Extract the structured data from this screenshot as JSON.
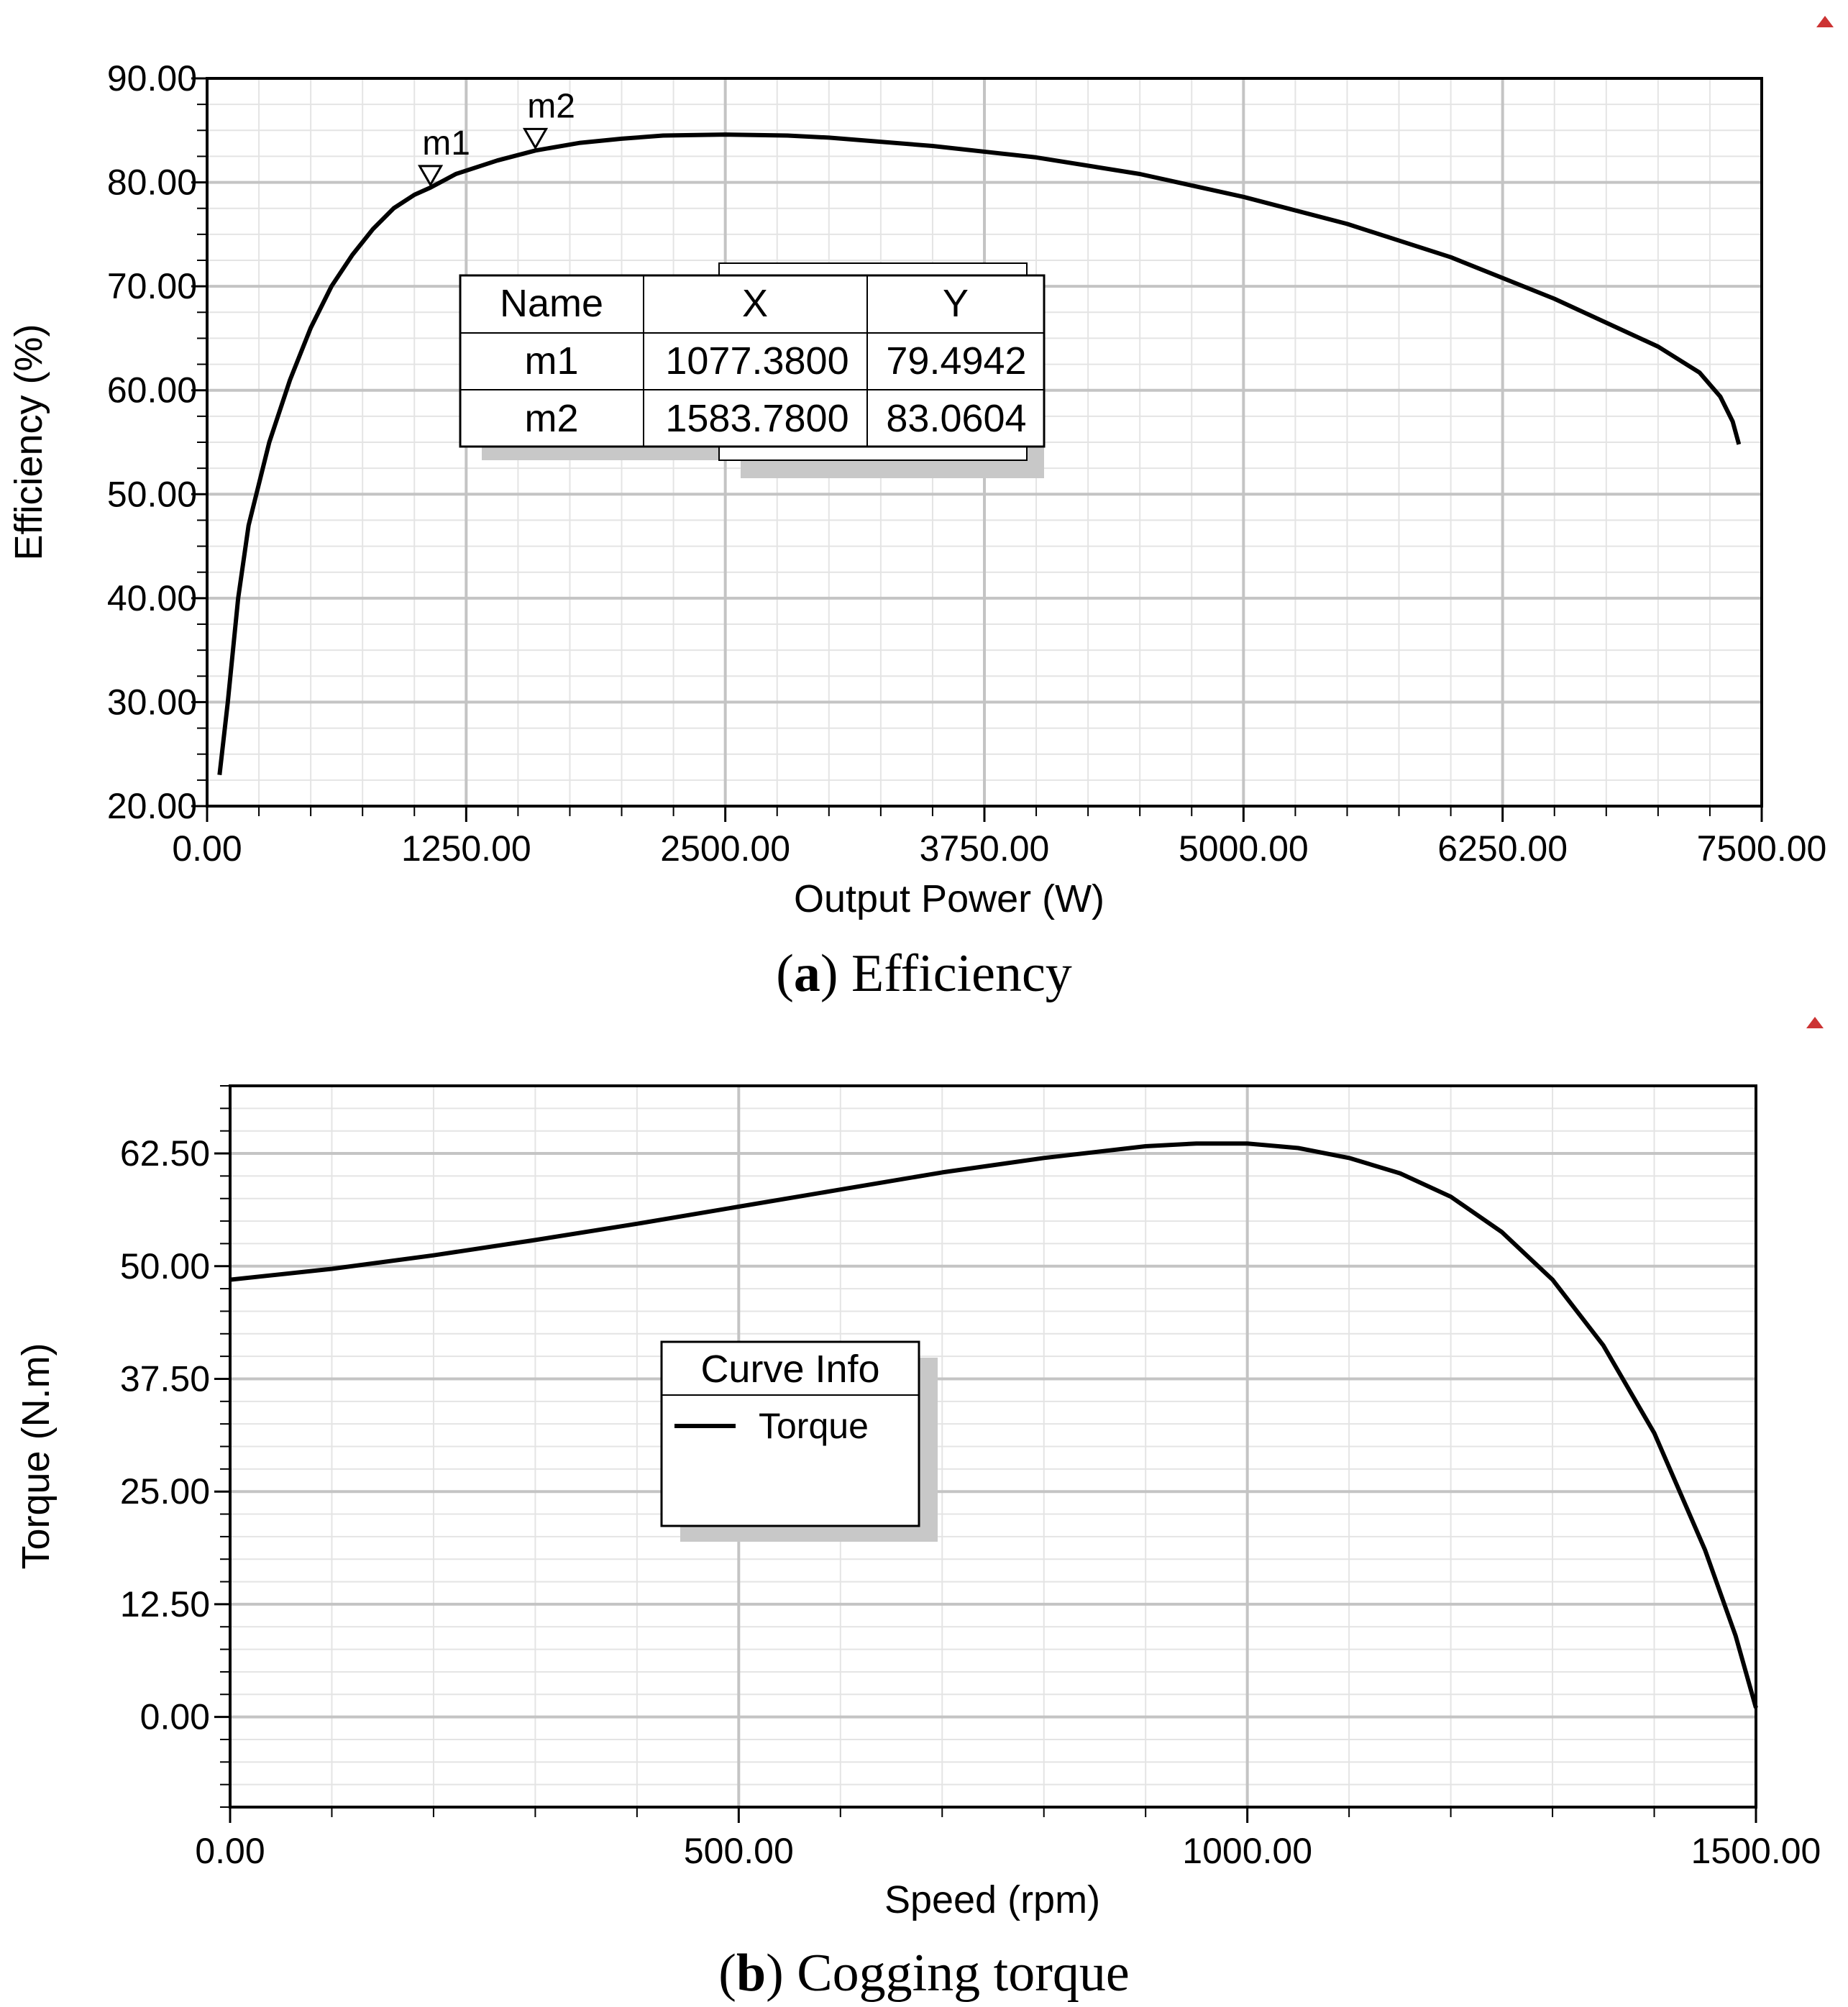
{
  "chart_data": [
    {
      "type": "line",
      "title": "",
      "caption_letter": "a",
      "caption_text": " Efficiency",
      "xlabel": "Output Power (W)",
      "ylabel": "Efficiency (%)",
      "xlim": [
        0,
        7500
      ],
      "ylim": [
        20,
        90
      ],
      "x_ticks": [
        0,
        1250,
        2500,
        3750,
        5000,
        6250,
        7500
      ],
      "x_tick_labels": [
        "0.00",
        "1250.00",
        "2500.00",
        "3750.00",
        "5000.00",
        "6250.00",
        "7500.00"
      ],
      "y_ticks": [
        20,
        30,
        40,
        50,
        60,
        70,
        80,
        90
      ],
      "y_tick_labels": [
        "20.00",
        "30.00",
        "40.00",
        "50.00",
        "60.00",
        "70.00",
        "80.00",
        "90.00"
      ],
      "grid": true,
      "series": [
        {
          "name": "Efficiency",
          "x": [
            60,
            100,
            150,
            200,
            300,
            400,
            500,
            600,
            700,
            800,
            900,
            1000,
            1077.38,
            1200,
            1400,
            1583.78,
            1800,
            2000,
            2200,
            2500,
            2800,
            3000,
            3500,
            4000,
            4500,
            5000,
            5500,
            6000,
            6500,
            7000,
            7200,
            7300,
            7360,
            7390
          ],
          "y": [
            23,
            30,
            40,
            47,
            55,
            61,
            66,
            70,
            73,
            75.5,
            77.5,
            78.8,
            79.4942,
            80.8,
            82.1,
            83.0604,
            83.8,
            84.2,
            84.5,
            84.6,
            84.5,
            84.3,
            83.5,
            82.4,
            80.8,
            78.6,
            76,
            72.8,
            68.8,
            64.2,
            61.7,
            59.4,
            57,
            54.8
          ]
        }
      ],
      "markers": {
        "headers": [
          "Name",
          "X",
          "Y"
        ],
        "rows": [
          {
            "name": "m1",
            "x": 1077.38,
            "y": 79.4942,
            "x_text": "1077.3800",
            "y_text": "79.4942"
          },
          {
            "name": "m2",
            "x": 1583.78,
            "y": 83.0604,
            "x_text": "1583.7800",
            "y_text": "83.0604"
          }
        ]
      }
    },
    {
      "type": "line",
      "title": "",
      "caption_letter": "b",
      "caption_text": " Cogging torque",
      "xlabel": "Speed (rpm)",
      "ylabel": "Torque (N.m)",
      "xlim": [
        0,
        1500
      ],
      "ylim": [
        -10,
        70
      ],
      "x_ticks": [
        0,
        500,
        1000,
        1500
      ],
      "x_tick_labels": [
        "0.00",
        "500.00",
        "1000.00",
        "1500.00"
      ],
      "y_ticks": [
        0,
        12.5,
        25,
        37.5,
        50,
        62.5
      ],
      "y_tick_labels": [
        "0.00",
        "12.50",
        "25.00",
        "37.50",
        "50.00",
        "62.50"
      ],
      "grid": true,
      "legend": {
        "title": "Curve Info",
        "entries": [
          "Torque"
        ],
        "placement": "center-left"
      },
      "series": [
        {
          "name": "Torque",
          "x": [
            0,
            100,
            200,
            300,
            400,
            500,
            600,
            700,
            800,
            900,
            950,
            1000,
            1050,
            1100,
            1150,
            1200,
            1250,
            1300,
            1350,
            1400,
            1450,
            1480,
            1500
          ],
          "y": [
            48.5,
            49.7,
            51.2,
            52.9,
            54.7,
            56.6,
            58.5,
            60.4,
            62,
            63.3,
            63.6,
            63.6,
            63.1,
            62,
            60.3,
            57.7,
            53.8,
            48.5,
            41.2,
            31.5,
            18.5,
            9,
            1
          ]
        }
      ]
    }
  ]
}
